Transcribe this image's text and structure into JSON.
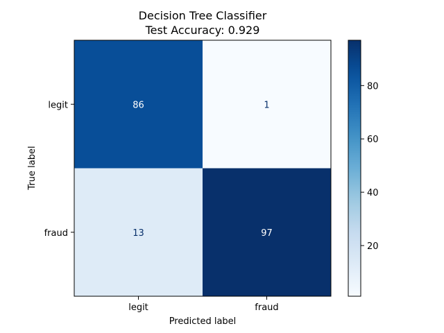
{
  "chart_data": {
    "type": "heatmap",
    "title_line1": "Decision Tree Classifier",
    "title_line2": "Test Accuracy: 0.929",
    "xlabel": "Predicted label",
    "ylabel": "True label",
    "x_categories": [
      "legit",
      "fraud"
    ],
    "y_categories": [
      "legit",
      "fraud"
    ],
    "matrix": [
      [
        86,
        1
      ],
      [
        13,
        97
      ]
    ],
    "colormap": "Blues",
    "color_range": [
      1,
      97
    ],
    "colorbar_ticks": [
      20,
      40,
      60,
      80
    ],
    "text_color_light_cell": "#08306b",
    "text_color_dark_cell": "#ffffff",
    "grid": false
  }
}
